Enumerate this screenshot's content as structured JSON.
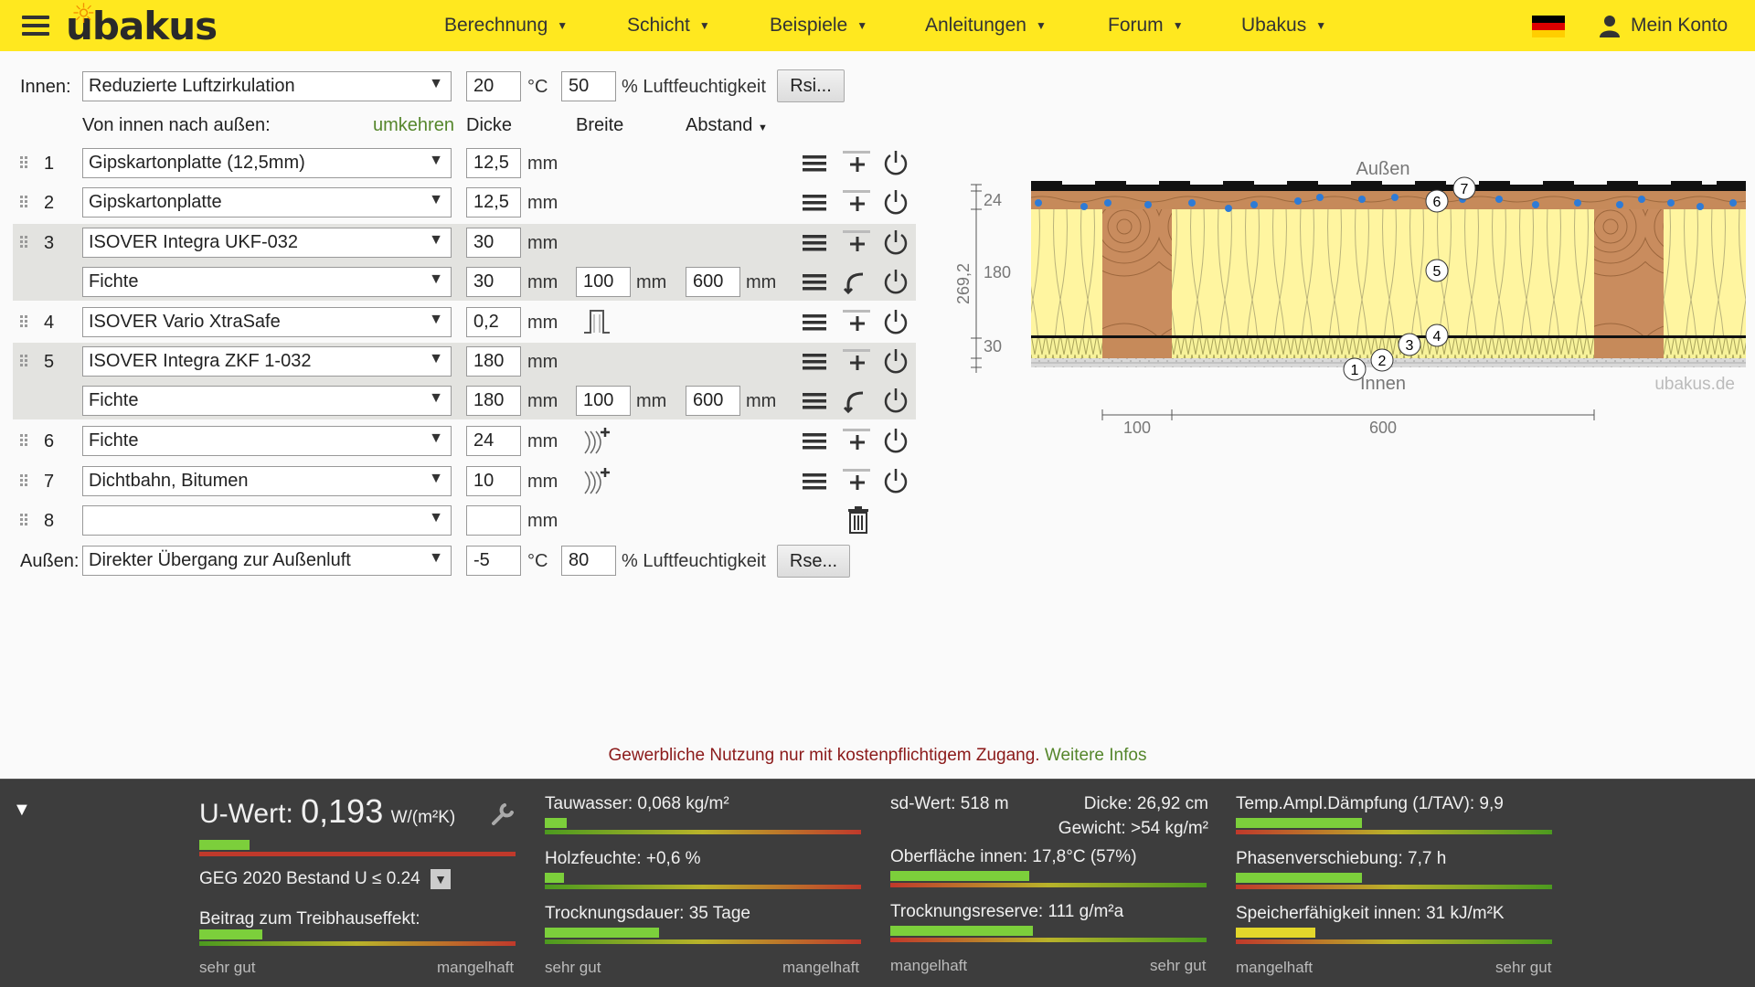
{
  "header": {
    "logo": "ubakus",
    "nav": [
      {
        "label": "Berechnung"
      },
      {
        "label": "Schicht"
      },
      {
        "label": "Beispiele"
      },
      {
        "label": "Anleitungen"
      },
      {
        "label": "Forum"
      },
      {
        "label": "Ubakus"
      }
    ],
    "account_label": "Mein Konto",
    "accent_color": "#ffe81f"
  },
  "inside": {
    "label": "Innen:",
    "condition": "Reduzierte Luftzirkulation",
    "temperature": "20",
    "temp_unit": "°C",
    "humidity": "50",
    "humidity_label": "% Luftfeuchtigkeit",
    "button": "Rsi..."
  },
  "columns": {
    "direction": "Von innen nach außen:",
    "reverse": "umkehren",
    "thickness": "Dicke",
    "width": "Breite",
    "spacing": "Abstand"
  },
  "layers": [
    {
      "num": "1",
      "material": "Gipskartonplatte (12,5mm)",
      "thickness": "12,5",
      "unit": "mm"
    },
    {
      "num": "2",
      "material": "Gipskartonplatte",
      "thickness": "12,5",
      "unit": "mm"
    },
    {
      "num": "3",
      "material": "ISOVER Integra UKF-032",
      "thickness": "30",
      "unit": "mm",
      "sub": {
        "material": "Fichte",
        "thickness": "30",
        "width": "100",
        "spacing": "600",
        "unit": "mm"
      }
    },
    {
      "num": "4",
      "material": "ISOVER Vario XtraSafe",
      "thickness": "0,2",
      "unit": "mm"
    },
    {
      "num": "5",
      "material": "ISOVER Integra ZKF 1-032",
      "thickness": "180",
      "unit": "mm",
      "sub": {
        "material": "Fichte",
        "thickness": "180",
        "width": "100",
        "spacing": "600",
        "unit": "mm"
      }
    },
    {
      "num": "6",
      "material": "Fichte",
      "thickness": "24",
      "unit": "mm"
    },
    {
      "num": "7",
      "material": "Dichtbahn, Bitumen",
      "thickness": "10",
      "unit": "mm"
    },
    {
      "num": "8",
      "material": "",
      "thickness": "",
      "unit": "mm"
    }
  ],
  "outside": {
    "label": "Außen:",
    "condition": "Direkter Übergang zur Außenluft",
    "temperature": "-5",
    "temp_unit": "°C",
    "humidity": "80",
    "humidity_label": "% Luftfeuchtigkeit",
    "button": "Rse..."
  },
  "diagram": {
    "label_outside": "Außen",
    "label_inside": "Innen",
    "watermark": "ubakus.de",
    "total": "269,2",
    "dims": [
      "24",
      "180",
      "30"
    ],
    "width_dims": [
      "100",
      "600"
    ],
    "markers": [
      "1",
      "2",
      "3",
      "4",
      "5",
      "6",
      "7"
    ]
  },
  "notice": {
    "text": "Gewerbliche Nutzung nur mit kostenpflichtigem Zugang.",
    "link": "Weitere Infos"
  },
  "results": {
    "uvalue_label": "U-Wert:",
    "uvalue": "0,193",
    "uvalue_unit": "W/(m²K)",
    "uvalue_level": 0.16,
    "standard": "GEG 2020 Bestand U ≤ 0.24",
    "greenhouse": "Beitrag zum Treibhauseffekt:",
    "greenhouse_level": 0.2,
    "condensate": "Tauwasser: 0,068 kg/m²",
    "condensate_level": 0.07,
    "wood_moisture": "Holzfeuchte: +0,6 %",
    "wood_moisture_level": 0.06,
    "drying": "Trocknungsdauer: 35 Tage",
    "drying_level": 0.36,
    "sd": "sd-Wert: 518 m",
    "thickness": "Dicke: 26,92 cm",
    "weight": "Gewicht: >54 kg/m²",
    "surface_inside": "Oberfläche innen: 17,8°C (57%)",
    "surface_level": 0.44,
    "drying_reserve": "Trocknungsreserve: 111 g/m²a",
    "drying_reserve_level": 0.45,
    "temp_damping": "Temp.Ampl.Dämpfung (1/TAV): 9,9",
    "temp_damping_level": 0.4,
    "phase_shift": "Phasenverschiebung: 7,7 h",
    "phase_shift_level": 0.4,
    "storage": "Speicherfähigkeit innen: 31 kJ/m²K",
    "storage_level": 0.25,
    "scale_good": "sehr gut",
    "scale_bad": "mangelhaft"
  }
}
